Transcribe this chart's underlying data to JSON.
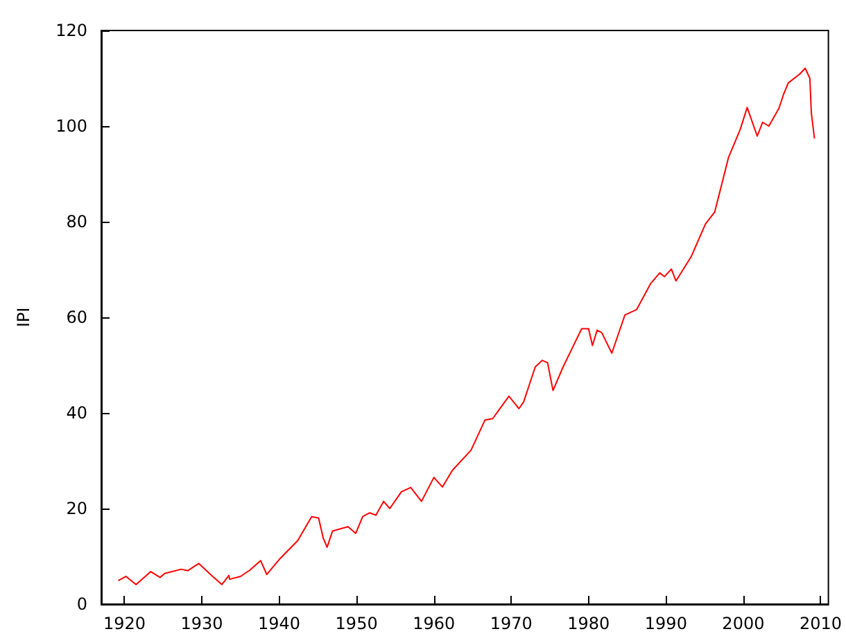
{
  "chart_data": {
    "type": "line",
    "ylabel": "IPI",
    "color": "#ff0000",
    "marker": "none",
    "grid": false,
    "x": [
      1919.2,
      1920.2,
      1921.5,
      1923.4,
      1924.6,
      1925.2,
      1927.3,
      1928.2,
      1929.6,
      1931.4,
      1932.6,
      1933.5,
      1933.6,
      1935.0,
      1936.2,
      1937.6,
      1938.4,
      1940.1,
      1942.4,
      1944.2,
      1945.1,
      1945.7,
      1946.2,
      1946.9,
      1948.9,
      1949.9,
      1950.8,
      1951.7,
      1952.5,
      1953.5,
      1954.3,
      1955.8,
      1957.0,
      1958.4,
      1960.0,
      1961.1,
      1962.4,
      1964.8,
      1966.6,
      1967.6,
      1969.7,
      1971.0,
      1971.6,
      1973.1,
      1974.0,
      1974.7,
      1975.4,
      1976.7,
      1977.9,
      1979.1,
      1980.0,
      1980.5,
      1981.1,
      1981.7,
      1983.0,
      1984.7,
      1986.2,
      1988.0,
      1989.2,
      1989.8,
      1990.7,
      1991.3,
      1993.3,
      1995.1,
      1996.3,
      1998.1,
      1999.6,
      2000.5,
      2001.8,
      2002.5,
      2003.3,
      2004.6,
      2005.2,
      2005.8,
      2007.3,
      2008.0,
      2008.6,
      2008.8,
      2009.2
    ],
    "values": [
      4.9,
      5.8,
      4.1,
      6.8,
      5.6,
      6.4,
      7.3,
      7.0,
      8.5,
      5.8,
      4.1,
      6.0,
      5.2,
      5.8,
      7.1,
      9.1,
      6.2,
      9.5,
      13.3,
      18.3,
      18.0,
      13.8,
      11.9,
      15.3,
      16.2,
      14.8,
      18.3,
      19.1,
      18.6,
      21.5,
      20.0,
      23.5,
      24.4,
      21.5,
      26.5,
      24.5,
      28.0,
      32.2,
      38.5,
      38.8,
      43.5,
      40.9,
      42.3,
      49.6,
      51.0,
      50.5,
      44.7,
      49.6,
      53.6,
      57.6,
      57.6,
      54.1,
      57.3,
      56.8,
      52.5,
      60.5,
      61.6,
      67.0,
      69.3,
      68.5,
      70.1,
      67.6,
      72.8,
      79.5,
      82.0,
      93.5,
      99.3,
      103.9,
      97.9,
      100.8,
      100.0,
      103.7,
      106.6,
      109.0,
      110.9,
      112.1,
      110.0,
      102.7,
      97.4
    ],
    "xlim": [
      1917,
      2011
    ],
    "xticks": [
      1920,
      1930,
      1940,
      1950,
      1960,
      1970,
      1980,
      1990,
      2000,
      2010
    ],
    "ylim": [
      0,
      120
    ],
    "yticks": [
      0,
      20,
      40,
      60,
      80,
      100,
      120
    ]
  }
}
